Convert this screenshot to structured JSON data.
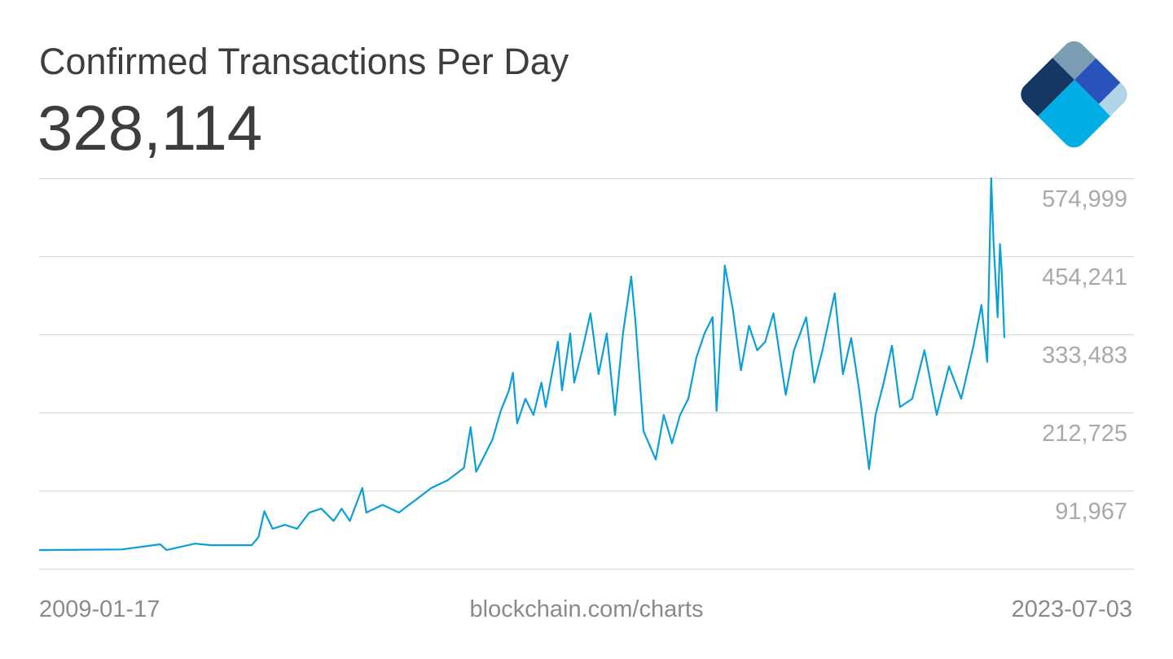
{
  "chart_data": {
    "type": "line",
    "title": "Confirmed Transactions Per Day",
    "latest_value": "328,114",
    "source": "blockchain.com/charts",
    "x_start_label": "2009-01-17",
    "x_end_label": "2023-07-03",
    "xlim": [
      "2009-01-17",
      "2023-07-03"
    ],
    "ylim": [
      -28791,
      574999
    ],
    "yticks": [
      574999,
      454241,
      333483,
      212725,
      91967
    ],
    "ytick_labels": [
      "574,999",
      "454,241",
      "333,483",
      "212,725",
      "91,967"
    ],
    "grid": true,
    "legend": "none",
    "colors": {
      "line": "#0a9fd8",
      "grid": "#d9d9d9",
      "text": "#3d3d3d",
      "muted": "#8a8a8a"
    },
    "series": [
      {
        "x": [
          "2009-01-17",
          "2010-04-15",
          "2010-11-10",
          "2010-12-15",
          "2011-05-20",
          "2011-08-15",
          "2012-03-25",
          "2012-05-01",
          "2012-06-02",
          "2012-07-17",
          "2012-09-23",
          "2012-11-28",
          "2013-02-03",
          "2013-04-10",
          "2013-06-16",
          "2013-07-30",
          "2013-09-13",
          "2013-11-20",
          "2013-12-12",
          "2014-03-11",
          "2014-06-08",
          "2014-09-05",
          "2014-12-03",
          "2015-03-02",
          "2015-05-30",
          "2015-07-05",
          "2015-08-05",
          "2015-09-19",
          "2015-11-02",
          "2015-12-17",
          "2016-01-31",
          "2016-02-22",
          "2016-03-16",
          "2016-04-30",
          "2016-06-13",
          "2016-07-27",
          "2016-08-19",
          "2016-10-25",
          "2016-11-16",
          "2016-12-31",
          "2017-01-22",
          "2017-03-07",
          "2017-04-21",
          "2017-06-04",
          "2017-07-19",
          "2017-09-02",
          "2017-10-16",
          "2017-11-30",
          "2017-12-23",
          "2018-02-05",
          "2018-04-13",
          "2018-05-27",
          "2018-07-11",
          "2018-08-24",
          "2018-10-08",
          "2018-11-21",
          "2019-01-05",
          "2019-02-18",
          "2019-03-12",
          "2019-04-26",
          "2019-06-09",
          "2019-07-23",
          "2019-09-05",
          "2019-10-20",
          "2019-12-03",
          "2020-01-17",
          "2020-03-24",
          "2020-05-08",
          "2020-07-14",
          "2020-08-27",
          "2020-10-11",
          "2020-12-17",
          "2021-01-31",
          "2021-03-17",
          "2021-04-30",
          "2021-06-23",
          "2021-07-28",
          "2021-09-11",
          "2021-10-26",
          "2021-12-09",
          "2022-02-14",
          "2022-04-22",
          "2022-06-28",
          "2022-09-03",
          "2022-11-09",
          "2023-01-15",
          "2023-02-28",
          "2023-03-31",
          "2023-04-22",
          "2023-05-05",
          "2023-05-27",
          "2023-06-09",
          "2023-06-18",
          "2023-07-03"
        ],
        "y": [
          0,
          1000,
          9000,
          0,
          10000,
          7500,
          7500,
          20000,
          60000,
          33000,
          39000,
          33000,
          58000,
          64000,
          45000,
          64000,
          45000,
          96000,
          58000,
          70000,
          58000,
          77000,
          96000,
          108000,
          127000,
          190000,
          121000,
          146000,
          171000,
          215000,
          247000,
          274000,
          196000,
          234000,
          209000,
          259000,
          221000,
          322000,
          247000,
          335000,
          259000,
          309000,
          366000,
          272000,
          335000,
          209000,
          335000,
          423000,
          353000,
          184000,
          140000,
          209000,
          165000,
          209000,
          234000,
          297000,
          335000,
          360000,
          215000,
          440000,
          372000,
          278000,
          347000,
          309000,
          322000,
          366000,
          240000,
          309000,
          360000,
          259000,
          309000,
          397000,
          272000,
          328000,
          247000,
          125000,
          209000,
          259000,
          316000,
          221000,
          234000,
          309000,
          209000,
          284000,
          234000,
          316000,
          379000,
          291000,
          575000,
          473000,
          360000,
          473000,
          435000,
          328114
        ]
      }
    ]
  },
  "logo": {
    "colors": [
      "#7b9db2",
      "#143863",
      "#2953bb",
      "#b1d5e6",
      "#00aee6"
    ]
  }
}
